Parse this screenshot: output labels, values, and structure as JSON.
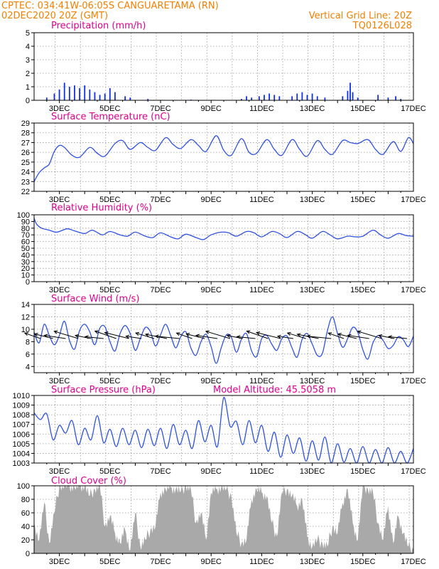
{
  "header": {
    "line1_left": "CPTEC:  034:41W-06:05S  CANGUARETAMA (RN)",
    "line2_left": "02DEC2020 20Z (GMT)",
    "line2_right": "Vertical Grid Line: 20Z",
    "line3_right": "TQ0126L028"
  },
  "colors": {
    "header": "#f08000",
    "panel_title": "#e0008c",
    "series_line": "#2f52e0",
    "precip_bar": "#1030e8",
    "cloud_fill": "#a9a9a9",
    "wind_arrow": "#000000"
  },
  "x_axis": {
    "start_hours_after": "02DEC 00Z",
    "end": "17DEC 00Z",
    "tick_labels": [
      "3DEC",
      "5DEC",
      "7DEC",
      "9DEC",
      "11DEC",
      "13DEC",
      "15DEC",
      "17DEC"
    ]
  },
  "chart_data": [
    {
      "id": "precip",
      "type": "bar",
      "title": "Precipitation (mm/h)",
      "ylim": [
        0,
        5
      ],
      "yticks": [
        0,
        1,
        2,
        3,
        4,
        5
      ],
      "grid": true,
      "series_hint": "hourly bars, mostly <0.6 mm/h with peaks near 3DEC (~1.3), 12DEC (~0.7) and 14DEC 12Z (~1.3)",
      "events": [
        {
          "day": 2.5,
          "value": 0.2
        },
        {
          "day": 2.8,
          "value": 0.5
        },
        {
          "day": 3.0,
          "value": 0.8
        },
        {
          "day": 3.2,
          "value": 1.3
        },
        {
          "day": 3.4,
          "value": 1.0
        },
        {
          "day": 3.6,
          "value": 1.1
        },
        {
          "day": 3.8,
          "value": 0.9
        },
        {
          "day": 4.0,
          "value": 1.1
        },
        {
          "day": 4.2,
          "value": 0.8
        },
        {
          "day": 4.4,
          "value": 0.6
        },
        {
          "day": 4.6,
          "value": 0.4
        },
        {
          "day": 4.8,
          "value": 0.5
        },
        {
          "day": 5.0,
          "value": 0.9
        },
        {
          "day": 5.2,
          "value": 0.6
        },
        {
          "day": 5.6,
          "value": 0.3
        },
        {
          "day": 5.8,
          "value": 0.2
        },
        {
          "day": 6.5,
          "value": 0.1
        },
        {
          "day": 8.2,
          "value": 0.05
        },
        {
          "day": 10.2,
          "value": 0.1
        },
        {
          "day": 10.4,
          "value": 0.3
        },
        {
          "day": 10.6,
          "value": 0.2
        },
        {
          "day": 10.9,
          "value": 0.3
        },
        {
          "day": 11.1,
          "value": 0.4
        },
        {
          "day": 11.3,
          "value": 0.5
        },
        {
          "day": 11.5,
          "value": 0.4
        },
        {
          "day": 11.7,
          "value": 0.3
        },
        {
          "day": 12.2,
          "value": 0.3
        },
        {
          "day": 12.4,
          "value": 0.5
        },
        {
          "day": 12.6,
          "value": 0.6
        },
        {
          "day": 12.8,
          "value": 0.4
        },
        {
          "day": 13.0,
          "value": 0.5
        },
        {
          "day": 13.2,
          "value": 0.3
        },
        {
          "day": 13.5,
          "value": 0.2
        },
        {
          "day": 14.2,
          "value": 0.3
        },
        {
          "day": 14.4,
          "value": 0.7
        },
        {
          "day": 14.5,
          "value": 1.3
        },
        {
          "day": 14.6,
          "value": 0.6
        },
        {
          "day": 14.8,
          "value": 0.2
        },
        {
          "day": 15.6,
          "value": 0.4
        },
        {
          "day": 16.0,
          "value": 0.2
        },
        {
          "day": 16.3,
          "value": 0.3
        },
        {
          "day": 16.5,
          "value": 0.1
        }
      ]
    },
    {
      "id": "temp",
      "type": "line",
      "title": "Surface Temperature (nC)",
      "ylim": [
        22,
        29
      ],
      "yticks": [
        22,
        23,
        24,
        25,
        26,
        27,
        28,
        29
      ],
      "grid": true,
      "x": [
        2.0,
        2.2,
        2.4,
        2.6,
        2.8,
        3.0,
        3.2,
        3.5,
        3.8,
        4.2,
        4.5,
        4.8,
        5.2,
        5.5,
        5.8,
        6.2,
        6.5,
        6.8,
        7.2,
        7.5,
        7.8,
        8.2,
        8.5,
        8.8,
        9.2,
        9.5,
        9.8,
        10.2,
        10.5,
        10.8,
        11.2,
        11.5,
        11.8,
        12.2,
        12.5,
        12.8,
        13.2,
        13.5,
        13.8,
        14.2,
        14.5,
        14.8,
        15.2,
        15.5,
        15.8,
        16.2,
        16.5,
        16.8,
        17.0
      ],
      "values": [
        23.0,
        23.9,
        24.4,
        24.8,
        26.1,
        26.7,
        26.5,
        25.7,
        25.5,
        26.5,
        25.9,
        25.6,
        26.9,
        27.2,
        26.3,
        27.0,
        26.5,
        26.2,
        27.5,
        26.8,
        26.4,
        27.3,
        26.7,
        26.1,
        27.7,
        26.2,
        25.7,
        27.4,
        26.0,
        25.9,
        27.3,
        26.3,
        25.7,
        27.3,
        26.3,
        25.6,
        27.2,
        26.3,
        25.8,
        27.2,
        27.0,
        26.9,
        27.3,
        26.3,
        25.8,
        27.1,
        26.1,
        27.5,
        26.9
      ]
    },
    {
      "id": "rh",
      "type": "line",
      "title": "Relative Humidity (%)",
      "ylim": [
        0,
        100
      ],
      "yticks": [
        0,
        10,
        20,
        30,
        40,
        50,
        60,
        70,
        80,
        90,
        100
      ],
      "grid": true,
      "x": [
        2.0,
        2.1,
        2.3,
        2.6,
        2.9,
        3.3,
        3.6,
        4.0,
        4.3,
        4.7,
        5.0,
        5.4,
        5.7,
        6.0,
        6.4,
        6.7,
        7.0,
        7.4,
        7.7,
        8.0,
        8.4,
        8.7,
        9.0,
        9.4,
        9.7,
        10.0,
        10.4,
        10.7,
        11.0,
        11.4,
        11.7,
        12.0,
        12.4,
        12.7,
        13.0,
        13.4,
        13.7,
        14.0,
        14.4,
        14.7,
        15.0,
        15.4,
        15.7,
        16.0,
        16.4,
        16.7,
        17.0
      ],
      "values": [
        95,
        86,
        80,
        77,
        74,
        79,
        76,
        72,
        77,
        70,
        75,
        70,
        68,
        74,
        68,
        66,
        73,
        67,
        64,
        71,
        66,
        63,
        70,
        74,
        73,
        68,
        75,
        73,
        67,
        75,
        72,
        66,
        75,
        71,
        65,
        75,
        70,
        64,
        68,
        67,
        68,
        77,
        70,
        65,
        72,
        69,
        68
      ]
    },
    {
      "id": "wind",
      "type": "line",
      "title": "Surface Wind (m/s)",
      "ylim": [
        3,
        14
      ],
      "yticks": [
        4,
        6,
        8,
        10,
        12,
        14
      ],
      "grid": true,
      "x": [
        2.0,
        2.2,
        2.4,
        2.6,
        2.8,
        3.0,
        3.2,
        3.4,
        3.6,
        3.8,
        4.0,
        4.2,
        4.4,
        4.6,
        4.8,
        5.0,
        5.2,
        5.4,
        5.6,
        5.8,
        6.0,
        6.2,
        6.4,
        6.6,
        6.8,
        7.0,
        7.2,
        7.4,
        7.6,
        7.8,
        8.0,
        8.2,
        8.4,
        8.6,
        8.8,
        9.0,
        9.2,
        9.4,
        9.6,
        9.8,
        10.0,
        10.2,
        10.4,
        10.6,
        10.8,
        11.0,
        11.2,
        11.4,
        11.6,
        11.8,
        12.0,
        12.2,
        12.4,
        12.6,
        12.8,
        13.0,
        13.2,
        13.4,
        13.6,
        13.8,
        14.0,
        14.2,
        14.4,
        14.6,
        14.8,
        15.0,
        15.2,
        15.4,
        15.6,
        15.8,
        16.0,
        16.2,
        16.4,
        16.6,
        16.8,
        17.0
      ],
      "values": [
        9.5,
        7.8,
        10.8,
        9.0,
        7.5,
        9.0,
        11.3,
        8.2,
        6.8,
        9.8,
        10.8,
        9.6,
        7.5,
        10.2,
        10.4,
        8.0,
        6.5,
        9.3,
        10.6,
        9.3,
        6.6,
        8.5,
        10.3,
        9.6,
        7.3,
        9.1,
        10.8,
        9.0,
        7.0,
        8.8,
        9.6,
        7.0,
        5.8,
        8.0,
        9.2,
        7.2,
        4.5,
        7.0,
        9.1,
        8.7,
        6.3,
        8.4,
        9.3,
        6.5,
        5.6,
        8.5,
        9.0,
        7.6,
        6.6,
        8.5,
        8.9,
        7.0,
        5.5,
        8.4,
        9.3,
        7.6,
        5.8,
        6.1,
        9.8,
        12.0,
        9.3,
        7.1,
        8.5,
        10.3,
        9.5,
        6.7,
        5.2,
        7.8,
        9.0,
        8.2,
        6.9,
        7.4,
        8.8,
        8.3,
        7.2,
        8.9
      ],
      "arrows_hint": "wind vectors every 6 h pointing west-northwest (trade easterlies), drawn along the 8 m/s line"
    },
    {
      "id": "pressure",
      "type": "line",
      "title": "Surface Pressure (hPa)",
      "annotation": "Model Altitude: 45.5058 m",
      "ylim": [
        1003,
        1010
      ],
      "yticks": [
        1003,
        1004,
        1005,
        1006,
        1007,
        1008,
        1009,
        1010
      ],
      "grid": true,
      "x": [
        2.0,
        2.25,
        2.5,
        2.75,
        3.0,
        3.25,
        3.5,
        3.75,
        4.0,
        4.25,
        4.5,
        4.75,
        5.0,
        5.25,
        5.5,
        5.75,
        6.0,
        6.25,
        6.5,
        6.75,
        7.0,
        7.25,
        7.5,
        7.75,
        8.0,
        8.25,
        8.5,
        8.75,
        9.0,
        9.25,
        9.5,
        9.75,
        10.0,
        10.25,
        10.5,
        10.75,
        11.0,
        11.25,
        11.5,
        11.75,
        12.0,
        12.25,
        12.5,
        12.75,
        13.0,
        13.25,
        13.5,
        13.75,
        14.0,
        14.25,
        14.5,
        14.75,
        15.0,
        15.25,
        15.5,
        15.75,
        16.0,
        16.25,
        16.5,
        16.75,
        17.0
      ],
      "values": [
        1008.2,
        1007.5,
        1008.1,
        1005.4,
        1006.9,
        1006.1,
        1007.4,
        1004.9,
        1006.6,
        1005.4,
        1007.9,
        1005.1,
        1006.5,
        1004.7,
        1006.6,
        1004.9,
        1006.4,
        1004.6,
        1006.5,
        1004.8,
        1006.6,
        1004.5,
        1007.0,
        1004.9,
        1006.4,
        1004.5,
        1007.4,
        1005.2,
        1006.9,
        1004.7,
        1009.8,
        1006.8,
        1007.3,
        1004.9,
        1007.4,
        1005.1,
        1006.9,
        1004.2,
        1006.2,
        1003.6,
        1005.9,
        1004.0,
        1005.6,
        1003.2,
        1005.3,
        1003.3,
        1005.7,
        1003.0,
        1005.0,
        1003.1,
        1004.5,
        1003.0,
        1004.7,
        1003.0,
        1004.4,
        1003.0,
        1004.6,
        1003.0,
        1004.2,
        1003.0,
        1004.5
      ]
    },
    {
      "id": "cloud",
      "type": "area",
      "title": "Cloud Cover (%)",
      "ylim": [
        0,
        100
      ],
      "yticks": [
        0,
        20,
        40,
        60,
        80,
        100
      ],
      "grid": true,
      "x": [
        2.0,
        2.2,
        2.4,
        2.6,
        2.8,
        3.0,
        3.2,
        3.4,
        3.6,
        3.8,
        4.0,
        4.2,
        4.4,
        4.6,
        4.8,
        5.0,
        5.2,
        5.4,
        5.6,
        5.8,
        6.0,
        6.2,
        6.4,
        6.6,
        6.8,
        7.0,
        7.2,
        7.4,
        7.6,
        7.8,
        8.0,
        8.2,
        8.4,
        8.6,
        8.8,
        9.0,
        9.2,
        9.4,
        9.6,
        9.8,
        10.0,
        10.2,
        10.4,
        10.6,
        10.8,
        11.0,
        11.2,
        11.4,
        11.6,
        11.8,
        12.0,
        12.2,
        12.4,
        12.6,
        12.8,
        13.0,
        13.2,
        13.4,
        13.6,
        13.8,
        14.0,
        14.2,
        14.4,
        14.6,
        14.8,
        15.0,
        15.2,
        15.4,
        15.6,
        15.8,
        16.0,
        16.2,
        16.4,
        16.6,
        16.8,
        17.0
      ],
      "values": [
        45,
        20,
        75,
        15,
        60,
        100,
        100,
        100,
        98,
        100,
        100,
        85,
        95,
        100,
        40,
        55,
        30,
        15,
        35,
        5,
        60,
        10,
        20,
        35,
        40,
        90,
        95,
        98,
        95,
        92,
        100,
        95,
        45,
        60,
        20,
        90,
        95,
        98,
        95,
        85,
        30,
        15,
        20,
        80,
        95,
        90,
        85,
        45,
        25,
        90,
        95,
        85,
        70,
        80,
        25,
        10,
        20,
        15,
        10,
        40,
        30,
        75,
        95,
        45,
        20,
        100,
        95,
        90,
        45,
        20,
        70,
        15,
        55,
        30,
        10,
        5
      ]
    }
  ]
}
